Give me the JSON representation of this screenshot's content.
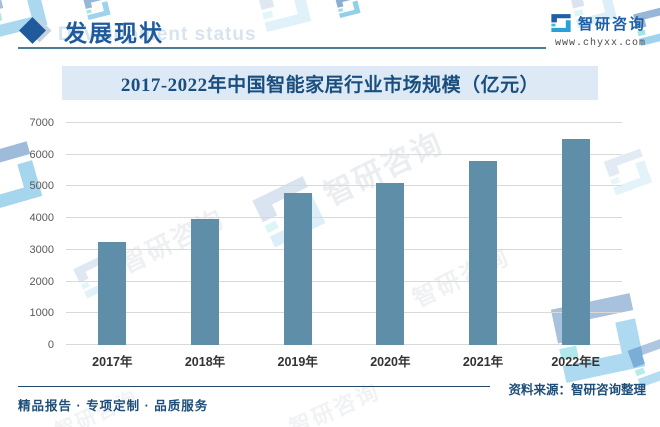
{
  "header": {
    "title": "发展现状",
    "subtitle_faded": "Development status",
    "logo_text": "智研咨询",
    "logo_url": "www.chyxx.com"
  },
  "chart_data": {
    "type": "bar",
    "title": "2017-2022年中国智能家居行业市场规模（亿元）",
    "categories": [
      "2017年",
      "2018年",
      "2019年",
      "2020年",
      "2021年",
      "2022年E"
    ],
    "values": [
      3250,
      3960,
      4800,
      5100,
      5800,
      6500
    ],
    "unit": "亿元",
    "xlabel": "",
    "ylabel": "",
    "ylim": [
      0,
      7000
    ],
    "yticks": [
      0,
      1000,
      2000,
      3000,
      4000,
      5000,
      6000,
      7000
    ],
    "grid": true,
    "legend": "none",
    "bar_color": "#5f8fa8"
  },
  "footer": {
    "source": "资料来源：智研咨询整理",
    "services": "精品报告 · 专项定制 · 品质服务"
  },
  "watermark": {
    "text": "智研咨询"
  },
  "colors": {
    "brand_dark_blue": "#1d5fa8",
    "brand_light_blue": "#2aa0d8",
    "brand_teal": "#35c4cf",
    "header_blue": "#1e5a9c",
    "title_band_bg": "#ddeaf5",
    "title_text": "#1a4e7e",
    "bar": "#5f8fa8",
    "gridline": "#d9d9d9",
    "footer_text": "#1d4e79"
  }
}
